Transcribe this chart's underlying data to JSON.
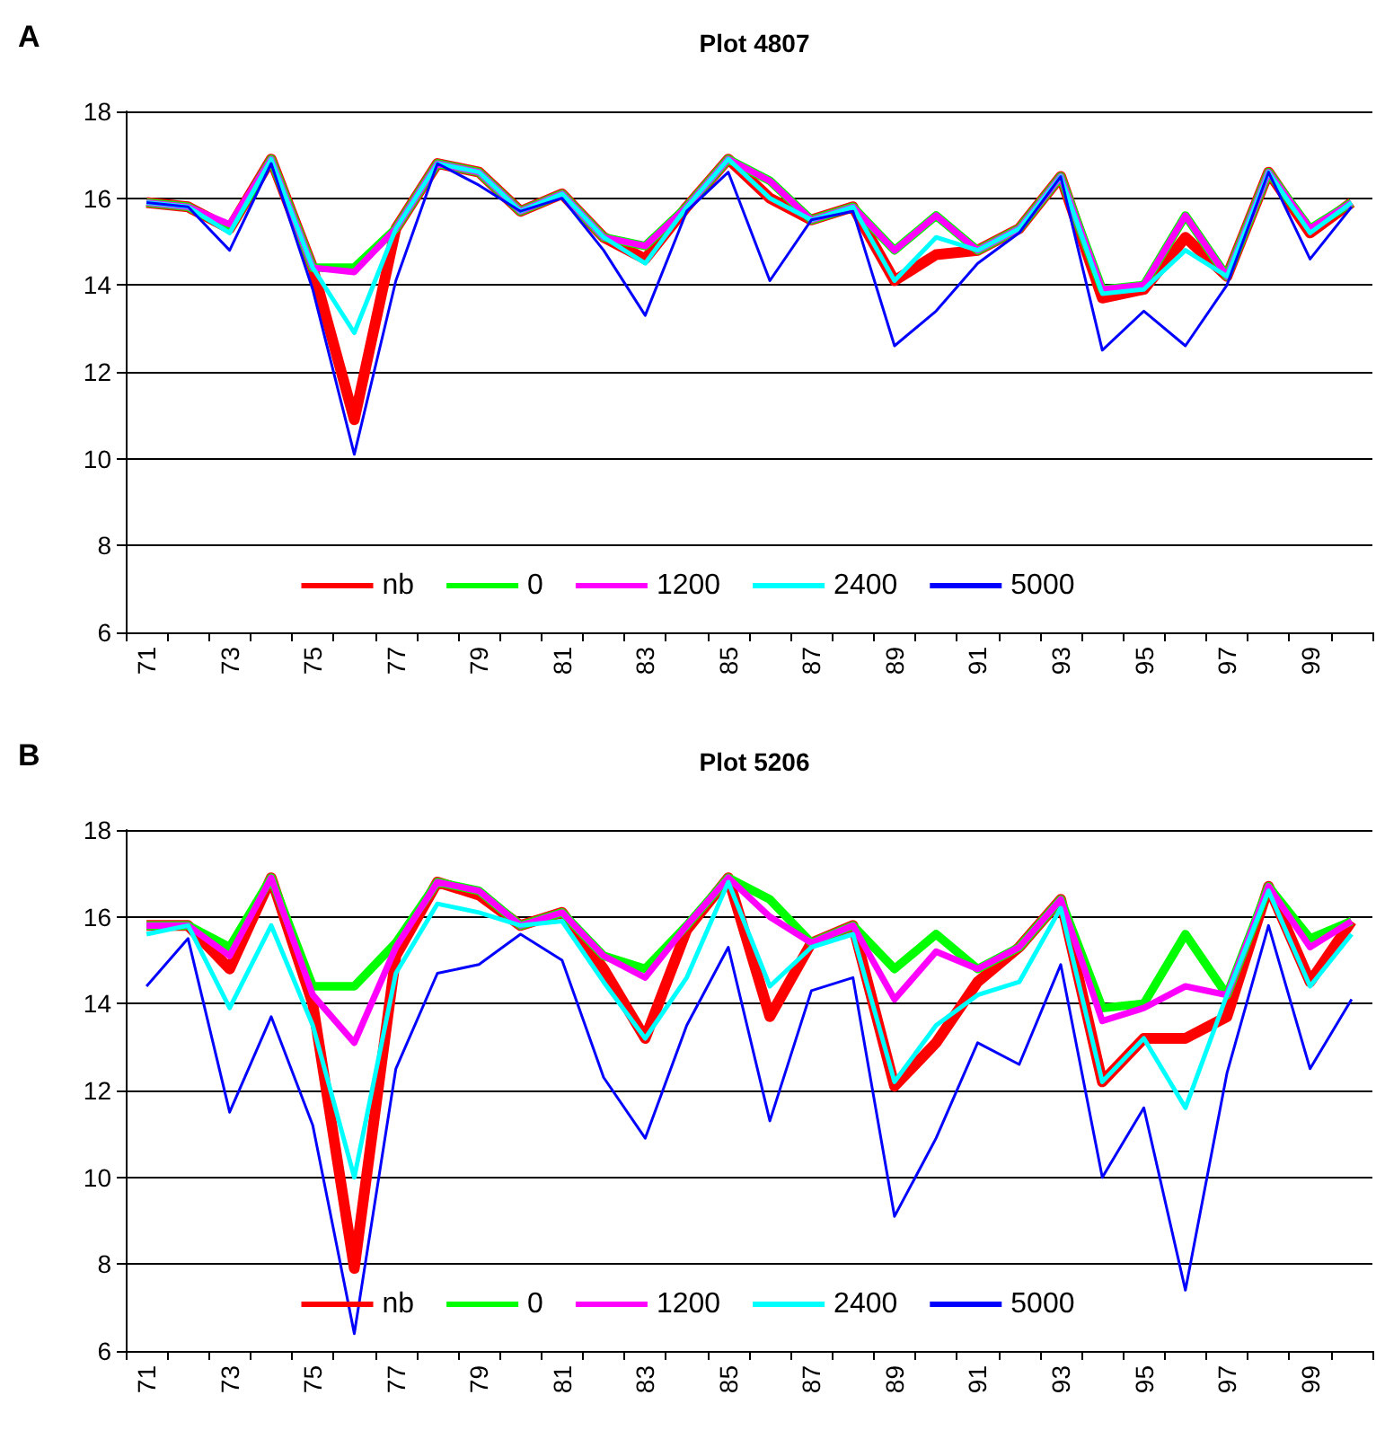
{
  "chart_data": [
    {
      "type": "line",
      "title": "Plot 4807",
      "annotations": [
        "A"
      ],
      "categories": [
        "71",
        null,
        "73",
        null,
        "75",
        null,
        "77",
        null,
        "79",
        null,
        "81",
        null,
        "83",
        null,
        "85",
        null,
        "87",
        null,
        "89",
        null,
        "91",
        null,
        "93",
        null,
        "95",
        null,
        "97",
        null,
        "99",
        null
      ],
      "ylim": [
        6,
        18
      ],
      "yticks": [
        6,
        8,
        10,
        12,
        14,
        16,
        18
      ],
      "grid": "y",
      "legend": "bottom",
      "series": [
        {
          "name": "nb",
          "color": "#ff0000",
          "values": [
            15.9,
            15.8,
            15.3,
            16.9,
            14.4,
            10.9,
            15.3,
            16.8,
            16.6,
            15.7,
            16.1,
            15.1,
            14.6,
            15.8,
            16.9,
            16.0,
            15.5,
            15.8,
            14.1,
            14.7,
            14.8,
            15.3,
            16.5,
            13.7,
            13.9,
            15.1,
            14.2,
            16.6,
            15.2,
            15.9
          ]
        },
        {
          "name": "0",
          "color": "#00ff00",
          "values": [
            15.9,
            15.8,
            15.3,
            16.9,
            14.4,
            14.4,
            15.3,
            16.8,
            16.6,
            15.7,
            16.1,
            15.1,
            14.9,
            15.8,
            16.9,
            16.4,
            15.5,
            15.8,
            14.8,
            15.6,
            14.8,
            15.3,
            16.5,
            13.9,
            14.0,
            15.6,
            14.2,
            16.6,
            15.3,
            15.9
          ]
        },
        {
          "name": "1200",
          "color": "#ff00ff",
          "values": [
            15.9,
            15.8,
            15.4,
            16.9,
            14.4,
            14.3,
            15.3,
            16.8,
            16.6,
            15.7,
            16.1,
            15.1,
            14.9,
            15.8,
            16.9,
            16.4,
            15.5,
            15.8,
            14.8,
            15.6,
            14.8,
            15.3,
            16.5,
            13.9,
            14.0,
            15.6,
            14.2,
            16.6,
            15.3,
            15.9
          ]
        },
        {
          "name": "2400",
          "color": "#00ffff",
          "values": [
            15.9,
            15.8,
            15.2,
            16.9,
            14.4,
            12.9,
            15.3,
            16.8,
            16.6,
            15.7,
            16.1,
            15.1,
            14.5,
            15.8,
            16.9,
            16.0,
            15.5,
            15.8,
            14.1,
            15.1,
            14.8,
            15.3,
            16.5,
            13.8,
            13.9,
            14.8,
            14.2,
            16.6,
            15.2,
            15.9
          ]
        },
        {
          "name": "5000",
          "color": "#0000ff",
          "values": [
            15.9,
            15.8,
            14.8,
            16.8,
            13.9,
            10.1,
            14.1,
            16.8,
            16.3,
            15.7,
            16.0,
            14.8,
            13.3,
            15.7,
            16.6,
            14.1,
            15.5,
            15.7,
            12.6,
            13.4,
            14.5,
            15.2,
            16.5,
            12.5,
            13.4,
            12.6,
            14.0,
            16.6,
            14.6,
            15.8
          ]
        }
      ]
    },
    {
      "type": "line",
      "title": "Plot 5206",
      "annotations": [
        "B"
      ],
      "categories": [
        "71",
        null,
        "73",
        null,
        "75",
        null,
        "77",
        null,
        "79",
        null,
        "81",
        null,
        "83",
        null,
        "85",
        null,
        "87",
        null,
        "89",
        null,
        "91",
        null,
        "93",
        null,
        "95",
        null,
        "97",
        null,
        "99",
        null
      ],
      "ylim": [
        6,
        18
      ],
      "yticks": [
        6,
        8,
        10,
        12,
        14,
        16,
        18
      ],
      "grid": "y",
      "legend": "bottom",
      "series": [
        {
          "name": "nb",
          "color": "#ff0000",
          "values": [
            15.8,
            15.8,
            14.8,
            16.9,
            14.0,
            7.9,
            15.1,
            16.8,
            16.5,
            15.8,
            16.1,
            14.8,
            13.2,
            15.7,
            16.9,
            13.7,
            15.4,
            15.8,
            12.1,
            13.1,
            14.5,
            15.3,
            16.4,
            12.2,
            13.2,
            13.2,
            13.7,
            16.7,
            14.5,
            15.9
          ]
        },
        {
          "name": "0",
          "color": "#00ff00",
          "values": [
            15.8,
            15.8,
            15.3,
            16.9,
            14.4,
            14.4,
            15.4,
            16.8,
            16.6,
            15.8,
            16.1,
            15.1,
            14.8,
            15.8,
            16.9,
            16.4,
            15.4,
            15.8,
            14.8,
            15.6,
            14.8,
            15.3,
            16.4,
            13.9,
            14.0,
            15.6,
            14.2,
            16.7,
            15.5,
            15.9
          ]
        },
        {
          "name": "1200",
          "color": "#ff00ff",
          "values": [
            15.8,
            15.8,
            15.1,
            16.9,
            14.2,
            13.1,
            15.3,
            16.8,
            16.6,
            15.8,
            16.1,
            15.1,
            14.6,
            15.8,
            16.9,
            16.0,
            15.4,
            15.8,
            14.1,
            15.2,
            14.8,
            15.3,
            16.4,
            13.6,
            13.9,
            14.4,
            14.2,
            16.7,
            15.3,
            15.9
          ]
        },
        {
          "name": "2400",
          "color": "#00ffff",
          "values": [
            15.6,
            15.8,
            13.9,
            15.8,
            13.5,
            10.0,
            14.7,
            16.3,
            16.1,
            15.8,
            15.9,
            14.5,
            13.2,
            14.6,
            16.8,
            14.4,
            15.3,
            15.6,
            12.2,
            13.5,
            14.2,
            14.5,
            16.2,
            12.2,
            13.2,
            11.6,
            14.2,
            16.6,
            14.4,
            15.6
          ]
        },
        {
          "name": "5000",
          "color": "#0000ff",
          "values": [
            14.4,
            15.5,
            11.5,
            13.7,
            11.2,
            6.4,
            12.5,
            14.7,
            14.9,
            15.6,
            15.0,
            12.3,
            10.9,
            13.5,
            15.3,
            11.3,
            14.3,
            14.6,
            9.1,
            10.9,
            13.1,
            12.6,
            14.9,
            10.0,
            11.6,
            7.4,
            12.4,
            15.8,
            12.5,
            14.1
          ]
        }
      ]
    }
  ]
}
